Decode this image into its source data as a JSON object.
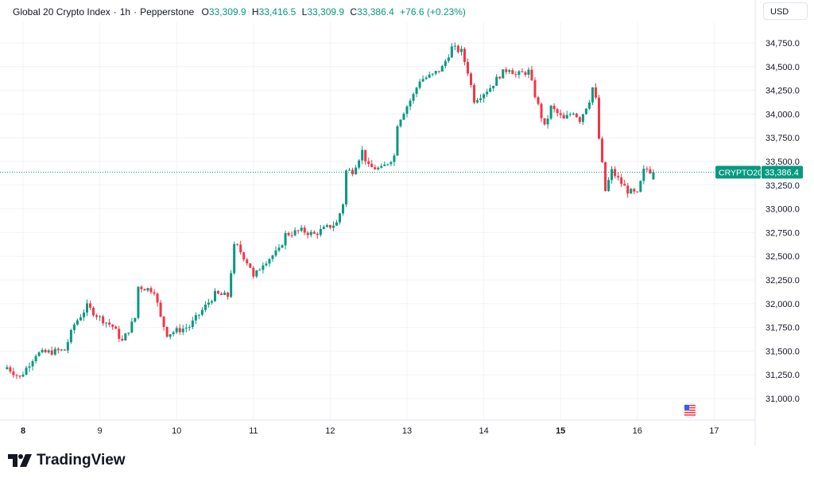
{
  "header": {
    "symbol": "Global 20 Crypto Index",
    "sep1": "·",
    "interval": "1h",
    "sep2": "·",
    "source": "Pepperstone",
    "o_label": "O",
    "open": "33,309.9",
    "h_label": "H",
    "high": "33,416.5",
    "l_label": "L",
    "low": "33,309.9",
    "c_label": "C",
    "close": "33,386.4",
    "change": "+76.6 (+0.23%)"
  },
  "currency": "USD",
  "price_tag": {
    "ticker": "CRYPTO20",
    "price": "33,386.4"
  },
  "branding": "TradingView",
  "colors": {
    "up": "#089981",
    "down": "#f23645",
    "grid": "#f0f3fa"
  },
  "chart_data": {
    "type": "candlestick",
    "title": "Global 20 Crypto Index · 1h · Pepperstone",
    "xlabel": "",
    "ylabel": "USD",
    "ylim": [
      30850,
      34900
    ],
    "y_ticks": [
      31000,
      31250,
      31500,
      31750,
      32000,
      32250,
      32500,
      32750,
      33000,
      33250,
      33500,
      33750,
      34000,
      34250,
      34500,
      34750
    ],
    "y_tick_labels": [
      "31,000.0",
      "31,250.0",
      "31,500.0",
      "31,750.0",
      "32,000.0",
      "32,250.0",
      "32,500.0",
      "32,750.0",
      "33,000.0",
      "33,250.0",
      "33,500.0",
      "33,750.0",
      "34,000.0",
      "34,250.0",
      "34,500.0",
      "34,750.0"
    ],
    "x_ticks": [
      {
        "day": 8,
        "label": "8",
        "bold": true
      },
      {
        "day": 9,
        "label": "9"
      },
      {
        "day": 10,
        "label": "10"
      },
      {
        "day": 11,
        "label": "11"
      },
      {
        "day": 12,
        "label": "12"
      },
      {
        "day": 13,
        "label": "13"
      },
      {
        "day": 14,
        "label": "14"
      },
      {
        "day": 15,
        "label": "15",
        "bold": true
      },
      {
        "day": 16,
        "label": "16"
      },
      {
        "day": 17,
        "label": "17"
      }
    ],
    "close_path_hours_from_day8": [
      [
        -5,
        31330
      ],
      [
        -1,
        31220
      ],
      [
        4,
        31470
      ],
      [
        13,
        31510
      ],
      [
        16,
        31780
      ],
      [
        20,
        31970
      ],
      [
        24,
        31850
      ],
      [
        28,
        31760
      ],
      [
        31,
        31600
      ],
      [
        35,
        31850
      ],
      [
        36,
        32180
      ],
      [
        41,
        32140
      ],
      [
        43,
        31850
      ],
      [
        45,
        31680
      ],
      [
        52,
        31760
      ],
      [
        56,
        31930
      ],
      [
        60,
        32100
      ],
      [
        64,
        32080
      ],
      [
        66,
        32600
      ],
      [
        67,
        32600
      ],
      [
        71,
        32390
      ],
      [
        72,
        32270
      ],
      [
        75,
        32430
      ],
      [
        80,
        32560
      ],
      [
        82,
        32730
      ],
      [
        87,
        32770
      ],
      [
        91,
        32730
      ],
      [
        93,
        32770
      ],
      [
        98,
        32850
      ],
      [
        100,
        33060
      ],
      [
        101,
        33400
      ],
      [
        103,
        33400
      ],
      [
        106,
        33610
      ],
      [
        108,
        33440
      ],
      [
        112,
        33420
      ],
      [
        116,
        33560
      ],
      [
        117,
        33900
      ],
      [
        119,
        34030
      ],
      [
        122,
        34200
      ],
      [
        124,
        34360
      ],
      [
        128,
        34410
      ],
      [
        131,
        34490
      ],
      [
        134,
        34700
      ],
      [
        137,
        34660
      ],
      [
        139,
        34450
      ],
      [
        141,
        34150
      ],
      [
        143,
        34200
      ],
      [
        146,
        34280
      ],
      [
        149,
        34410
      ],
      [
        152,
        34490
      ],
      [
        154,
        34410
      ],
      [
        158,
        34450
      ],
      [
        160,
        34200
      ],
      [
        163,
        33860
      ],
      [
        165,
        34070
      ],
      [
        169,
        33940
      ],
      [
        172,
        34030
      ],
      [
        174,
        33940
      ],
      [
        177,
        34150
      ],
      [
        178,
        34280
      ],
      [
        179,
        34150
      ],
      [
        180,
        33740
      ],
      [
        182,
        33190
      ],
      [
        184,
        33400
      ],
      [
        187,
        33270
      ],
      [
        189,
        33190
      ],
      [
        192,
        33150
      ],
      [
        194,
        33400
      ],
      [
        195,
        33420
      ],
      [
        197,
        33386.4
      ]
    ],
    "last_candle": {
      "open": 33309.9,
      "high": 33416.5,
      "low": 33309.9,
      "close": 33386.4
    }
  }
}
